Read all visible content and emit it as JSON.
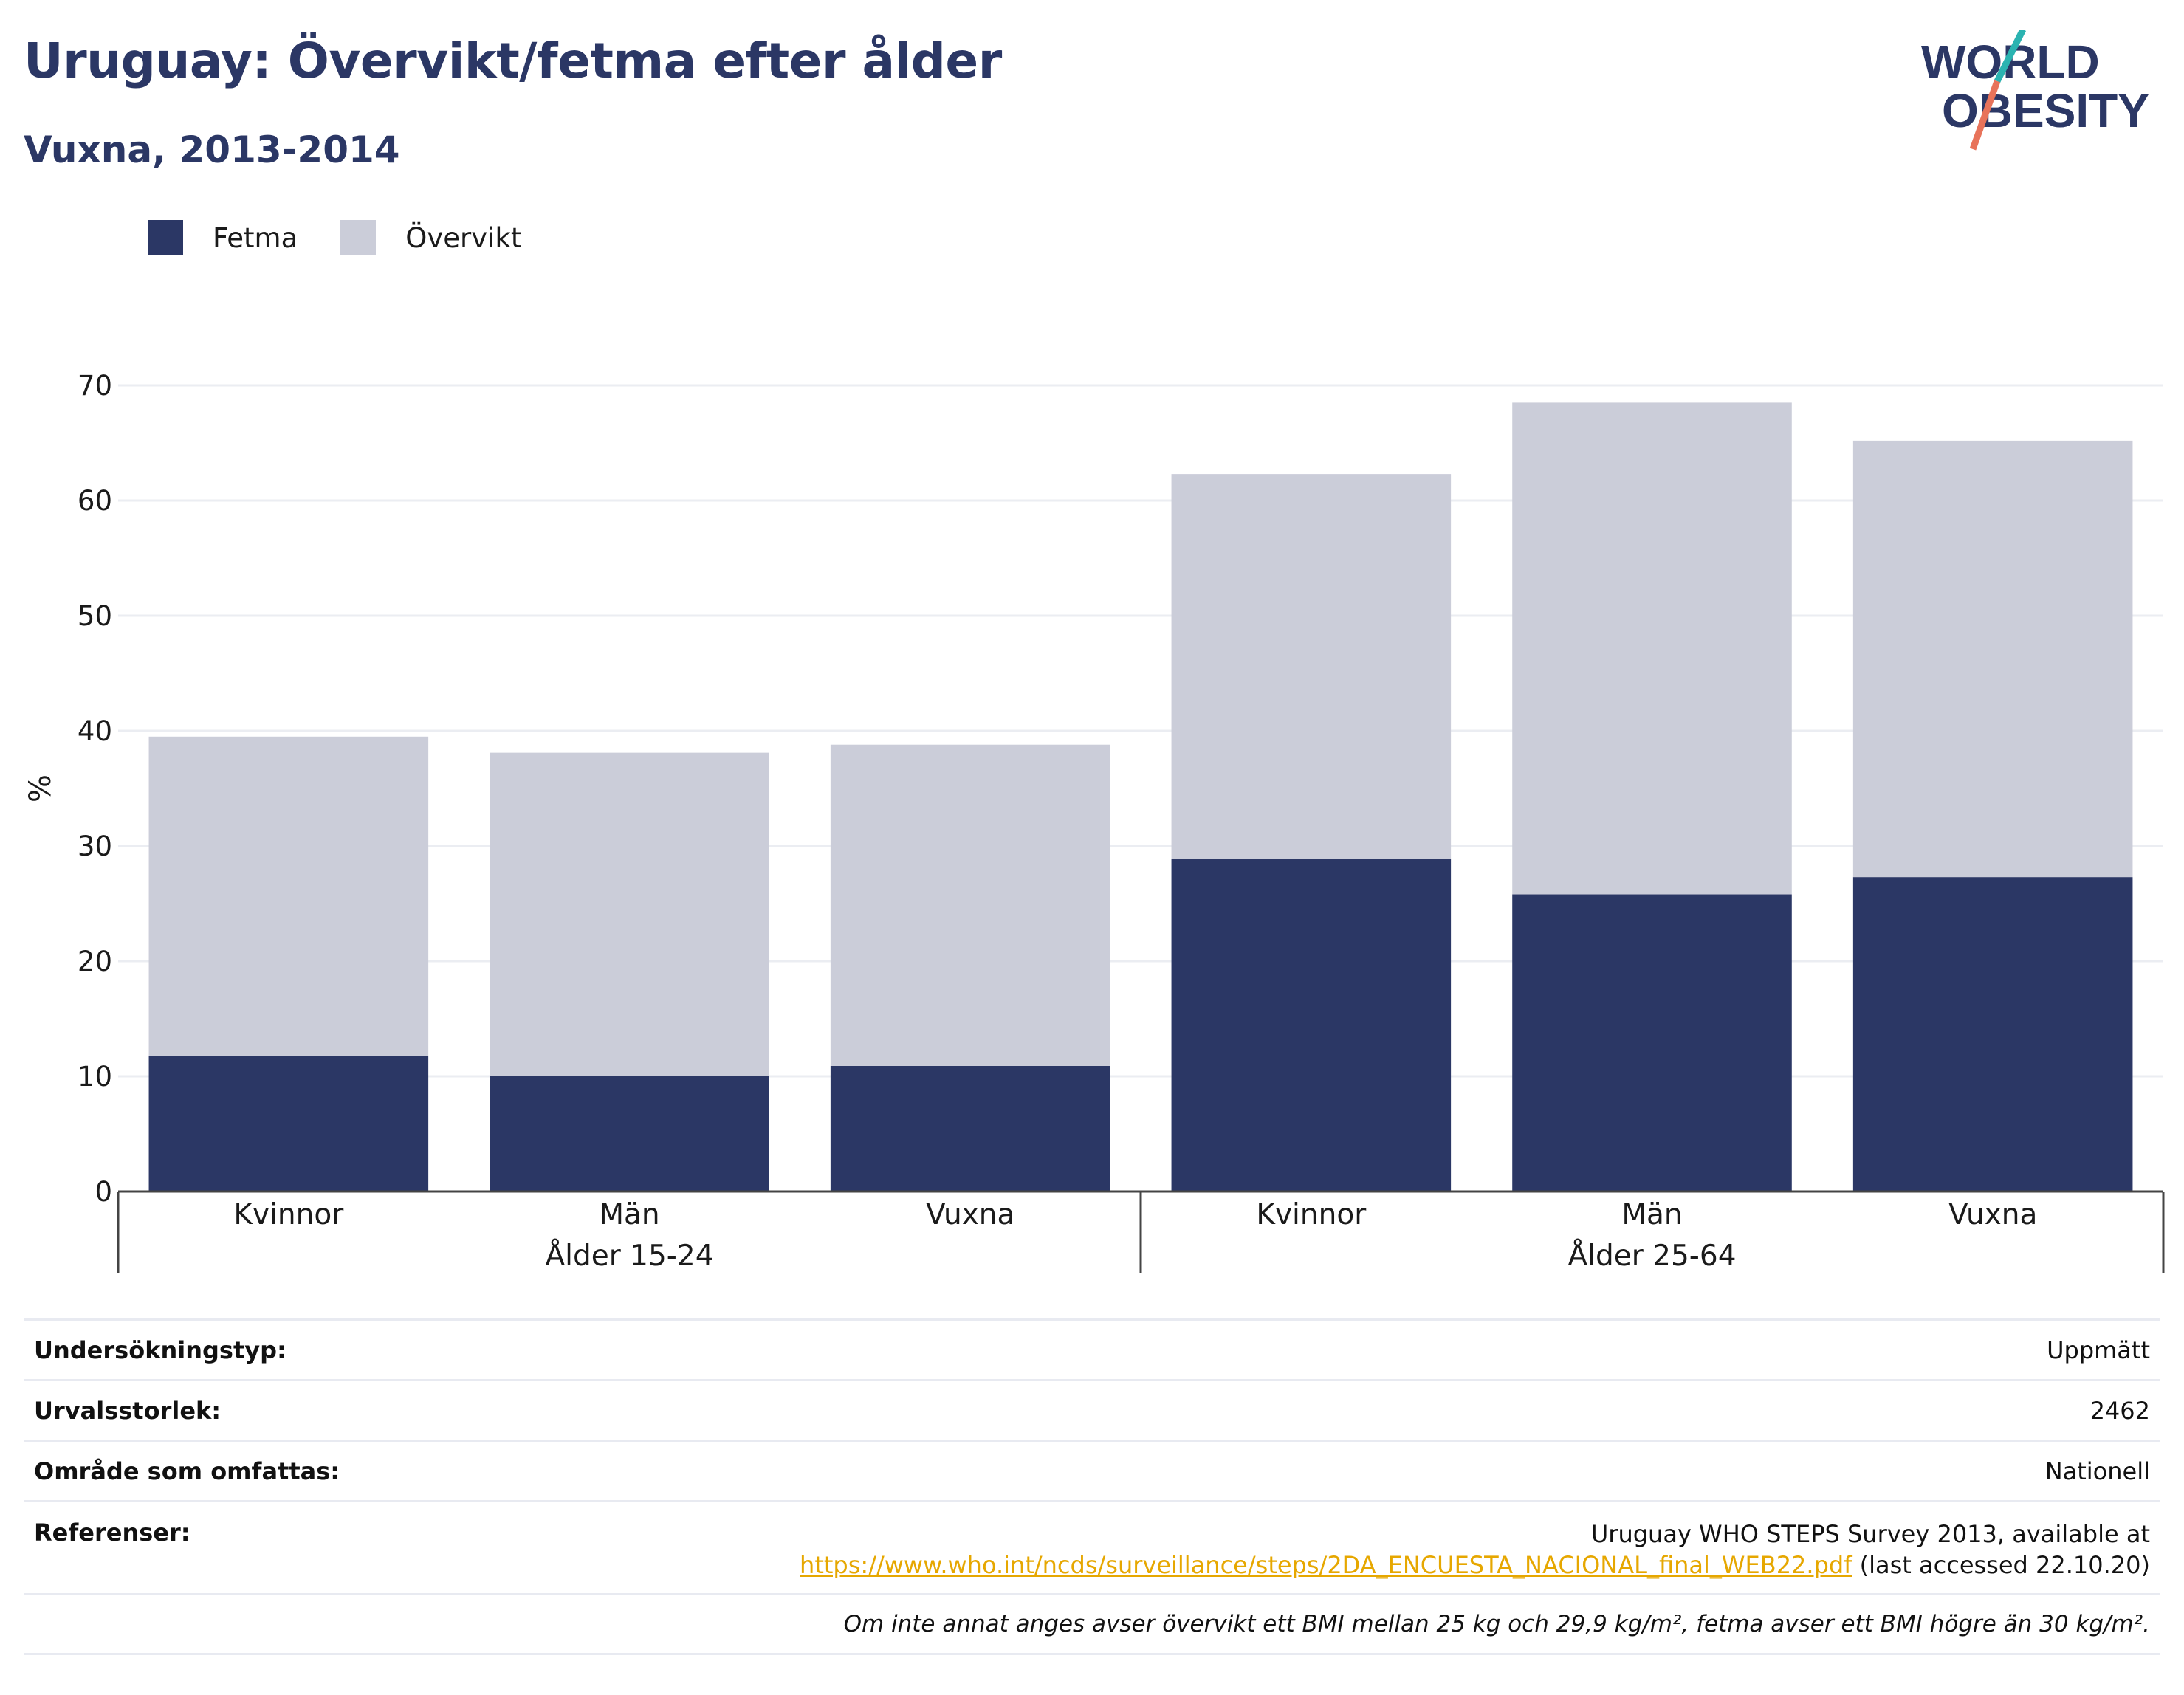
{
  "title": "Uruguay: Övervikt/fetma efter ålder",
  "subtitle": "Vuxna, 2013-2014",
  "logo": {
    "line1": "WORLD",
    "line2": "OBESITY",
    "accent_teal": "#2bb3b1",
    "accent_orange": "#e8735a",
    "text_color": "#2b3765"
  },
  "legend": [
    {
      "label": "Fetma",
      "color": "#2b3765"
    },
    {
      "label": "Övervikt",
      "color": "#cbcdd9"
    }
  ],
  "chart_data": {
    "type": "bar",
    "stacked": true,
    "ylabel": "%",
    "ylim": [
      0,
      70
    ],
    "yticks": [
      0,
      10,
      20,
      30,
      40,
      50,
      60,
      70
    ],
    "grid": true,
    "legend_position": "top-left",
    "categories": [
      "Kvinnor",
      "Män",
      "Vuxna",
      "Kvinnor",
      "Män",
      "Vuxna"
    ],
    "groups": [
      {
        "label": "Ålder 15-24",
        "categories": [
          "Kvinnor",
          "Män",
          "Vuxna"
        ]
      },
      {
        "label": "Ålder 25-64",
        "categories": [
          "Kvinnor",
          "Män",
          "Vuxna"
        ]
      }
    ],
    "series": [
      {
        "name": "Fetma",
        "color": "#2b3765",
        "values": [
          11.8,
          10.0,
          10.9,
          28.9,
          25.8,
          27.3
        ]
      },
      {
        "name": "Övervikt",
        "color": "#cbcdd9",
        "values": [
          27.7,
          28.1,
          27.9,
          33.4,
          42.7,
          37.9
        ]
      }
    ]
  },
  "info": {
    "survey_type_label": "Undersökningstyp:",
    "survey_type_value": "Uppmätt",
    "sample_label": "Urvalsstorlek:",
    "sample_value": "2462",
    "area_label": "Område som omfattas:",
    "area_value": "Nationell",
    "refs_label": "Referenser:",
    "refs_line1": "Uruguay WHO STEPS Survey 2013, available at",
    "refs_link": "https://www.who.int/ncds/surveillance/steps/2DA_ENCUESTA_NACIONAL_final_WEB22.pdf",
    "refs_suffix": " (last accessed 22.10.20)",
    "note": "Om inte annat anges avser övervikt ett BMI mellan 25 kg och 29,9 kg/m², fetma avser ett BMI högre än 30 kg/m²."
  }
}
